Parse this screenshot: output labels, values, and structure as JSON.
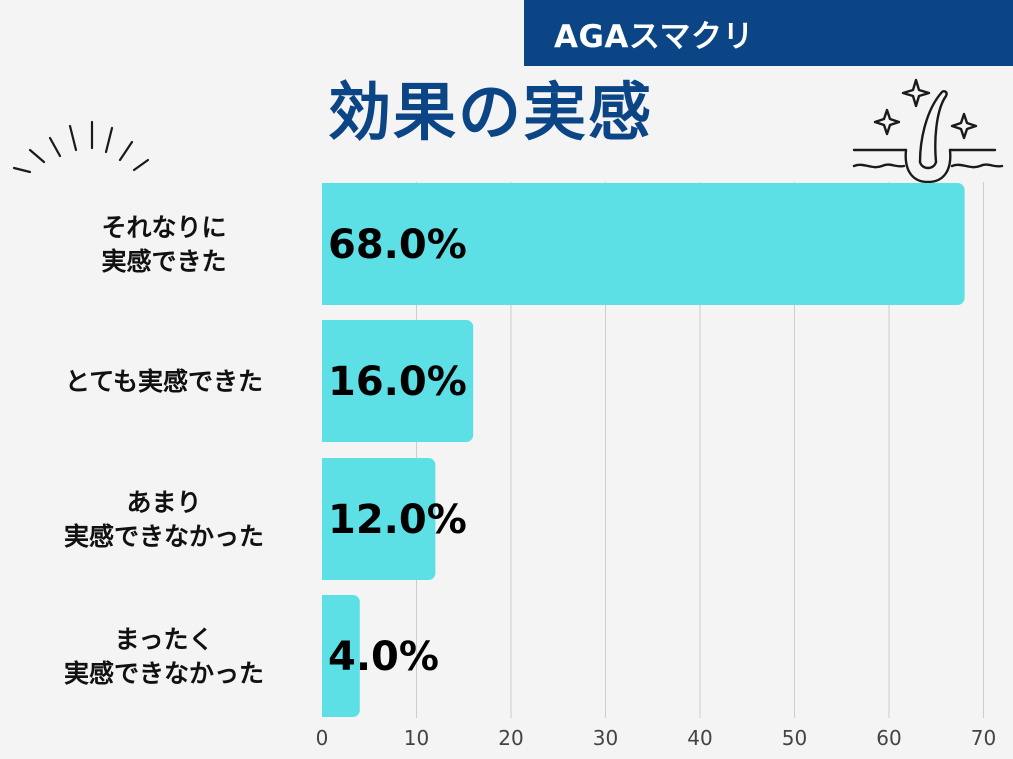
{
  "brand": {
    "name": "AGAスマクリ"
  },
  "title": "効果の実感",
  "colors": {
    "accent": "#0b4585",
    "bar": "#5ce0e6",
    "background": "#f4f4f4"
  },
  "icons": [
    "sparkle-burst-icon",
    "hair-follicle-icon"
  ],
  "chart_data": {
    "type": "bar",
    "orientation": "horizontal",
    "title": "効果の実感",
    "categories": [
      [
        "それなりに",
        "実感できた"
      ],
      [
        "とても実感できた"
      ],
      [
        "あまり",
        "実感できなかった"
      ],
      [
        "まったく",
        "実感できなかった"
      ]
    ],
    "values": [
      68.0,
      16.0,
      12.0,
      4.0
    ],
    "value_labels": [
      "68.0%",
      "16.0%",
      "12.0%",
      "4.0%"
    ],
    "xlim": [
      0,
      70
    ],
    "xticks": [
      0,
      10,
      20,
      30,
      40,
      50,
      60,
      70
    ],
    "grid": true,
    "legend": "none"
  }
}
